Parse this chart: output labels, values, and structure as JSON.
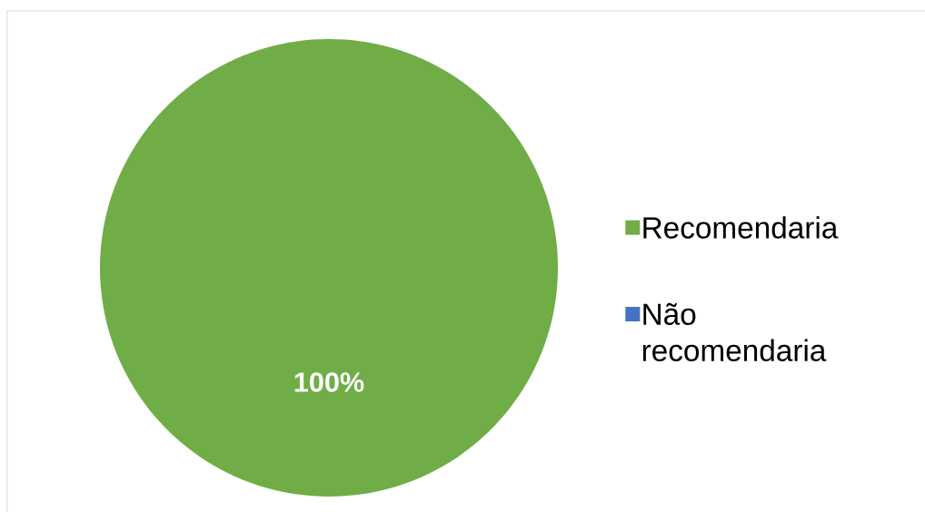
{
  "chart_data": {
    "type": "pie",
    "categories": [
      "Recomendaria",
      "Não recomendaria"
    ],
    "values": [
      100,
      0
    ],
    "colors": [
      "#70ad47",
      "#4472c4"
    ],
    "value_labels": [
      "100%",
      null
    ],
    "legend": "right"
  }
}
